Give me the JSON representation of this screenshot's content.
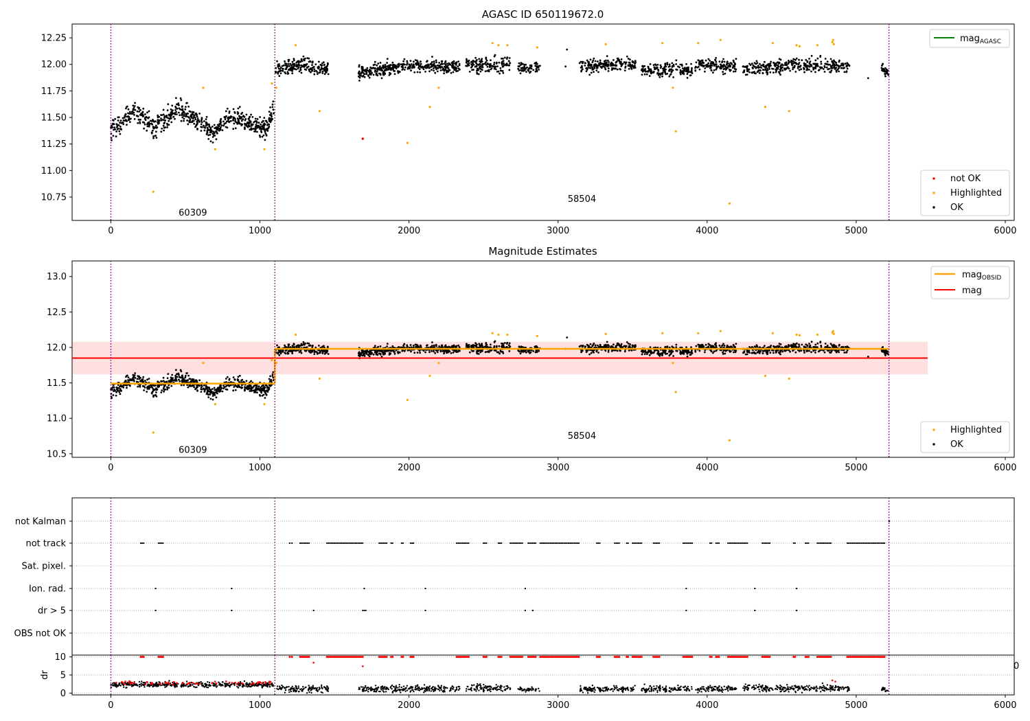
{
  "chart_data": [
    {
      "type": "scatter",
      "title": "AGASC ID 650119672.0",
      "xlim": [
        -260,
        6060
      ],
      "ylim": [
        10.53,
        12.38
      ],
      "xticks": [
        0,
        1000,
        2000,
        3000,
        4000,
        5000,
        6000
      ],
      "yticks": [
        10.75,
        11.0,
        11.25,
        11.5,
        11.75,
        12.0,
        12.25
      ],
      "ytick_labels": [
        "10.75",
        "11.00",
        "11.25",
        "11.50",
        "11.75",
        "12.00",
        "12.25"
      ],
      "obs_boundaries": [
        0,
        1100,
        5220
      ],
      "obs_labels": [
        {
          "text": "60309",
          "x": 550,
          "y": 10.6
        },
        {
          "text": "58504",
          "x": 3160,
          "y": 10.73
        }
      ],
      "ok_segments": [
        {
          "x0": 0,
          "x1": 1095,
          "base": [
            [
              0,
              11.38
            ],
            [
              150,
              11.55
            ],
            [
              300,
              11.4
            ],
            [
              450,
              11.58
            ],
            [
              600,
              11.45
            ],
            [
              700,
              11.35
            ],
            [
              800,
              11.52
            ],
            [
              950,
              11.45
            ],
            [
              1050,
              11.4
            ],
            [
              1095,
              11.6
            ]
          ],
          "spread": 0.09,
          "n": 650
        },
        {
          "x0": 1105,
          "x1": 1460,
          "base": [
            [
              1105,
              11.95
            ],
            [
              1300,
              12.0
            ],
            [
              1460,
              11.95
            ]
          ],
          "spread": 0.06,
          "n": 200
        },
        {
          "x0": 1660,
          "x1": 2340,
          "base": [
            [
              1660,
              11.92
            ],
            [
              2000,
              11.99
            ],
            [
              2340,
              11.98
            ]
          ],
          "spread": 0.06,
          "n": 380
        },
        {
          "x0": 2380,
          "x1": 2680,
          "base": [
            [
              2380,
              12.0
            ],
            [
              2680,
              12.0
            ]
          ],
          "spread": 0.07,
          "n": 150
        },
        {
          "x0": 2730,
          "x1": 2880,
          "base": [
            [
              2730,
              11.96
            ],
            [
              2880,
              11.98
            ]
          ],
          "spread": 0.05,
          "n": 60
        },
        {
          "x0": 3140,
          "x1": 3520,
          "base": [
            [
              3140,
              11.98
            ],
            [
              3520,
              12.0
            ]
          ],
          "spread": 0.06,
          "n": 190
        },
        {
          "x0": 3560,
          "x1": 3900,
          "base": [
            [
              3560,
              11.95
            ],
            [
              3900,
              11.95
            ]
          ],
          "spread": 0.06,
          "n": 170
        },
        {
          "x0": 3920,
          "x1": 4200,
          "base": [
            [
              3920,
              12.0
            ],
            [
              4200,
              11.98
            ]
          ],
          "spread": 0.06,
          "n": 140
        },
        {
          "x0": 4240,
          "x1": 4960,
          "base": [
            [
              4240,
              11.95
            ],
            [
              4600,
              12.0
            ],
            [
              4960,
              11.98
            ]
          ],
          "spread": 0.06,
          "n": 340
        },
        {
          "x0": 5170,
          "x1": 5220,
          "base": [
            [
              5170,
              11.98
            ],
            [
              5220,
              11.9
            ]
          ],
          "spread": 0.05,
          "n": 30
        }
      ],
      "ok_singles": [
        [
          3050,
          11.98
        ],
        [
          3060,
          12.14
        ],
        [
          5080,
          11.87
        ]
      ],
      "highlighted": [
        [
          285,
          10.8
        ],
        [
          620,
          11.78
        ],
        [
          700,
          11.2
        ],
        [
          1030,
          11.2
        ],
        [
          1080,
          11.82
        ],
        [
          1110,
          11.78
        ],
        [
          1240,
          12.18
        ],
        [
          1400,
          11.56
        ],
        [
          1990,
          11.26
        ],
        [
          2140,
          11.6
        ],
        [
          2200,
          11.78
        ],
        [
          2560,
          12.2
        ],
        [
          2600,
          12.18
        ],
        [
          2660,
          12.18
        ],
        [
          2860,
          12.16
        ],
        [
          3320,
          12.19
        ],
        [
          3700,
          12.2
        ],
        [
          3770,
          11.78
        ],
        [
          3790,
          11.37
        ],
        [
          3940,
          12.2
        ],
        [
          4090,
          12.23
        ],
        [
          4150,
          10.69
        ],
        [
          4390,
          11.6
        ],
        [
          4440,
          12.2
        ],
        [
          4550,
          11.56
        ],
        [
          4600,
          12.18
        ],
        [
          4620,
          12.17
        ],
        [
          4740,
          12.18
        ],
        [
          4840,
          12.21
        ],
        [
          4845,
          12.23
        ],
        [
          4850,
          12.19
        ]
      ],
      "not_ok": [
        [
          1690,
          11.3
        ]
      ],
      "legend": {
        "line": {
          "label": "mag",
          "sub": "AGASC",
          "color": "#008000"
        },
        "markers": [
          {
            "label": "not OK",
            "color": "#ff0000"
          },
          {
            "label": "Highlighted",
            "color": "#ffa500"
          },
          {
            "label": "OK",
            "color": "#000000"
          }
        ]
      }
    },
    {
      "type": "scatter",
      "title": "Magnitude Estimates",
      "xlim": [
        -260,
        6060
      ],
      "ylim": [
        10.45,
        13.22
      ],
      "xticks": [
        0,
        1000,
        2000,
        3000,
        4000,
        5000,
        6000
      ],
      "yticks": [
        10.5,
        11.0,
        11.5,
        12.0,
        12.5,
        13.0
      ],
      "ytick_labels": [
        "10.5",
        "11.0",
        "11.5",
        "12.0",
        "12.5",
        "13.0"
      ],
      "obs_boundaries": [
        0,
        1100,
        5220
      ],
      "obs_labels": [
        {
          "text": "60309",
          "x": 550,
          "y": 10.55
        },
        {
          "text": "58504",
          "x": 3160,
          "y": 10.75
        }
      ],
      "mag": 11.85,
      "mag_band": [
        11.62,
        12.08
      ],
      "band_x": [
        -260,
        5480
      ],
      "mag_obsid": [
        {
          "x0": 0,
          "x1": 1100,
          "y": 11.49
        },
        {
          "x0": 1100,
          "x1": 5220,
          "y": 11.98
        }
      ],
      "legend": {
        "lines": [
          {
            "label": "mag",
            "sub": "OBSID",
            "color": "#ffa500"
          },
          {
            "label": "mag",
            "sub": "",
            "color": "#ff0000"
          }
        ],
        "markers": [
          {
            "label": "Highlighted",
            "color": "#ffa500"
          },
          {
            "label": "OK",
            "color": "#000000"
          }
        ]
      }
    },
    {
      "type": "scatter",
      "title": "",
      "xlim": [
        -260,
        6060
      ],
      "flag_labels": [
        "not Kalman",
        "not track",
        "Sat. pixel.",
        "Ion. rad.",
        "dr > 5",
        "OBS not OK"
      ],
      "obs_boundaries": [
        0,
        1100,
        5220
      ],
      "flags": {
        "not Kalman": [
          [
            5220,
            5222
          ]
        ],
        "not track": [
          [
            200,
            220
          ],
          [
            320,
            350
          ],
          [
            1200,
            1215
          ],
          [
            1270,
            1330
          ],
          [
            1450,
            1690
          ],
          [
            1800,
            1850
          ],
          [
            1880,
            1890
          ],
          [
            1950,
            1960
          ],
          [
            2010,
            2030
          ],
          [
            2320,
            2400
          ],
          [
            2500,
            2520
          ],
          [
            2600,
            2620
          ],
          [
            2680,
            2760
          ],
          [
            2800,
            2850
          ],
          [
            2880,
            3140
          ],
          [
            3260,
            3280
          ],
          [
            3380,
            3410
          ],
          [
            3460,
            3470
          ],
          [
            3500,
            3560
          ],
          [
            3640,
            3680
          ],
          [
            3840,
            3900
          ],
          [
            4020,
            4030
          ],
          [
            4060,
            4080
          ],
          [
            4140,
            4270
          ],
          [
            4370,
            4420
          ],
          [
            4580,
            4590
          ],
          [
            4660,
            4680
          ],
          [
            4740,
            4830
          ],
          [
            4940,
            5190
          ]
        ],
        "Sat. pixel.": [],
        "Ion. rad.": [
          [
            300,
            300
          ],
          [
            810,
            810
          ],
          [
            1700,
            1700
          ],
          [
            2110,
            2110
          ],
          [
            2780,
            2780
          ],
          [
            3860,
            3860
          ],
          [
            4320,
            4320
          ],
          [
            4600,
            4600
          ]
        ],
        "dr > 5": [
          [
            300,
            300
          ],
          [
            810,
            810
          ],
          [
            1360,
            1360
          ],
          [
            1690,
            1710
          ],
          [
            2110,
            2110
          ],
          [
            2780,
            2780
          ],
          [
            2830,
            2830
          ],
          [
            3860,
            3860
          ],
          [
            4320,
            4320
          ],
          [
            4600,
            4600
          ]
        ],
        "OBS not OK": []
      }
    },
    {
      "type": "scatter",
      "title": "",
      "ylabel": "dr",
      "xlim": [
        -260,
        6060
      ],
      "ylim": [
        -0.5,
        10.5
      ],
      "xticks": [
        0,
        1000,
        2000,
        3000,
        4000,
        5000,
        6000
      ],
      "yticks": [
        0,
        5,
        10
      ],
      "ytick_labels": [
        "0",
        "5",
        "10"
      ],
      "clipped_tick_label": "0",
      "obs_boundaries": [
        0,
        1100,
        5220
      ],
      "dr_segments": [
        {
          "x0": 0,
          "x1": 1095,
          "level": 2.3,
          "spread": 0.7,
          "n": 420
        },
        {
          "x0": 1105,
          "x1": 1460,
          "level": 1.2,
          "spread": 0.9,
          "n": 120
        },
        {
          "x0": 1660,
          "x1": 2340,
          "level": 1.2,
          "spread": 0.9,
          "n": 230
        },
        {
          "x0": 2380,
          "x1": 2680,
          "level": 1.4,
          "spread": 0.9,
          "n": 100
        },
        {
          "x0": 2730,
          "x1": 2880,
          "level": 1.0,
          "spread": 0.6,
          "n": 40
        },
        {
          "x0": 3140,
          "x1": 3520,
          "level": 1.1,
          "spread": 0.8,
          "n": 130
        },
        {
          "x0": 3560,
          "x1": 3900,
          "level": 1.2,
          "spread": 0.8,
          "n": 110
        },
        {
          "x0": 3920,
          "x1": 4200,
          "level": 1.2,
          "spread": 0.8,
          "n": 90
        },
        {
          "x0": 4240,
          "x1": 4960,
          "level": 1.3,
          "spread": 0.9,
          "n": 230
        },
        {
          "x0": 5170,
          "x1": 5220,
          "level": 1.0,
          "spread": 0.6,
          "n": 20
        }
      ],
      "dr_red": [
        [
          1360,
          8.4
        ],
        [
          1690,
          7.4
        ],
        [
          4840,
          3.5
        ],
        [
          4860,
          3.2
        ]
      ]
    }
  ]
}
